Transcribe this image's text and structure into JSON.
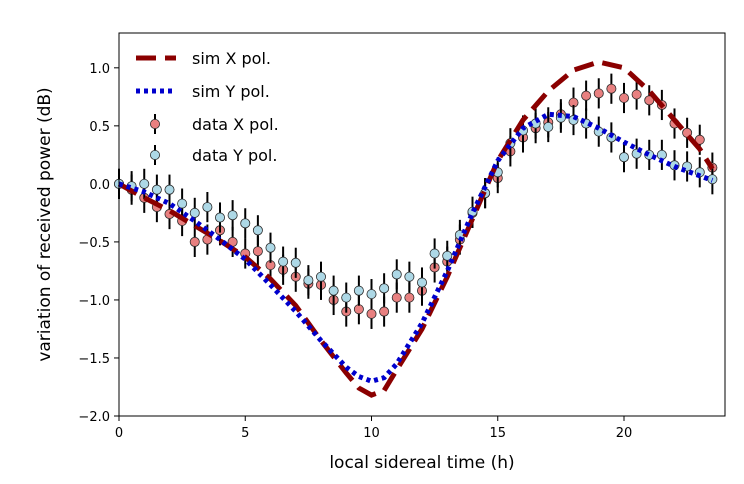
{
  "chart_data": {
    "type": "line",
    "xlabel": "local sidereal time (h)",
    "ylabel": "variation of received power (dB)",
    "xlim": [
      0,
      24
    ],
    "ylim": [
      -2.0,
      1.3
    ],
    "xticks": [
      0,
      5,
      10,
      15,
      20
    ],
    "xtick_labels": [
      "0",
      "5",
      "10",
      "15",
      "20"
    ],
    "yticks": [
      -2.0,
      -1.5,
      -1.0,
      -0.5,
      0.0,
      0.5,
      1.0
    ],
    "ytick_labels": [
      "−2.0",
      "−1.5",
      "−1.0",
      "−0.5",
      "0.0",
      "0.5",
      "1.0"
    ],
    "grid": false,
    "legend_position": "top-left",
    "series": [
      {
        "name": "sim X pol.",
        "kind": "line",
        "style": "dashed",
        "color": "#8b0000",
        "x": [
          0,
          1,
          2,
          3,
          4,
          5,
          6,
          7,
          8,
          9,
          9.5,
          10,
          10.5,
          11,
          12,
          13,
          14,
          15,
          16,
          17,
          18,
          19,
          20,
          21,
          22,
          23,
          23.5
        ],
        "y": [
          0.0,
          -0.12,
          -0.23,
          -0.36,
          -0.49,
          -0.63,
          -0.82,
          -1.05,
          -1.35,
          -1.63,
          -1.76,
          -1.82,
          -1.78,
          -1.6,
          -1.25,
          -0.8,
          -0.3,
          0.2,
          0.55,
          0.8,
          0.98,
          1.05,
          1.0,
          0.8,
          0.55,
          0.3,
          0.13
        ]
      },
      {
        "name": "sim Y pol.",
        "kind": "line",
        "style": "dotted",
        "color": "#0000cd",
        "x": [
          0,
          1,
          2,
          3,
          4,
          5,
          6,
          7,
          8,
          9,
          9.5,
          10,
          10.5,
          11,
          12,
          13,
          14,
          15,
          16,
          17,
          18,
          19,
          20,
          21,
          22,
          23,
          23.5
        ],
        "y": [
          0.0,
          -0.07,
          -0.17,
          -0.32,
          -0.48,
          -0.65,
          -0.87,
          -1.1,
          -1.35,
          -1.58,
          -1.66,
          -1.7,
          -1.67,
          -1.55,
          -1.2,
          -0.75,
          -0.25,
          0.2,
          0.48,
          0.6,
          0.58,
          0.48,
          0.36,
          0.25,
          0.15,
          0.07,
          0.03
        ]
      },
      {
        "name": "data X pol.",
        "kind": "errorbar",
        "color": "#e88080",
        "x": [
          0,
          0.5,
          1,
          1.5,
          2,
          2.5,
          3,
          3.5,
          4,
          4.5,
          5,
          5.5,
          6,
          6.5,
          7,
          7.5,
          8,
          8.5,
          9,
          9.5,
          10,
          10.5,
          11,
          11.5,
          12,
          12.5,
          13,
          13.5,
          14,
          14.5,
          15,
          15.5,
          16,
          16.5,
          17,
          17.5,
          18,
          18.5,
          19,
          19.5,
          20,
          20.5,
          21,
          21.5,
          22,
          22.5,
          23,
          23.5
        ],
        "y": [
          0.0,
          -0.05,
          -0.12,
          -0.2,
          -0.26,
          -0.32,
          -0.5,
          -0.48,
          -0.4,
          -0.5,
          -0.6,
          -0.58,
          -0.7,
          -0.74,
          -0.8,
          -0.86,
          -0.87,
          -1.0,
          -1.1,
          -1.08,
          -1.12,
          -1.1,
          -0.98,
          -0.98,
          -0.92,
          -0.72,
          -0.67,
          -0.48,
          -0.25,
          -0.08,
          0.05,
          0.28,
          0.4,
          0.48,
          0.53,
          0.6,
          0.7,
          0.76,
          0.78,
          0.82,
          0.74,
          0.77,
          0.72,
          0.68,
          0.52,
          0.44,
          0.38,
          0.14
        ],
        "yerr": 0.13
      },
      {
        "name": "data Y pol.",
        "kind": "errorbar",
        "color": "#add8e6",
        "x": [
          0,
          0.5,
          1,
          1.5,
          2,
          2.5,
          3,
          3.5,
          4,
          4.5,
          5,
          5.5,
          6,
          6.5,
          7,
          7.5,
          8,
          8.5,
          9,
          9.5,
          10,
          10.5,
          11,
          11.5,
          12,
          12.5,
          13,
          13.5,
          14,
          14.5,
          15,
          15.5,
          16,
          16.5,
          17,
          17.5,
          18,
          18.5,
          19,
          19.5,
          20,
          20.5,
          21,
          21.5,
          22,
          22.5,
          23,
          23.5
        ],
        "y": [
          0.0,
          -0.02,
          0.0,
          -0.05,
          -0.05,
          -0.17,
          -0.25,
          -0.2,
          -0.29,
          -0.27,
          -0.34,
          -0.4,
          -0.55,
          -0.67,
          -0.68,
          -0.83,
          -0.8,
          -0.92,
          -0.98,
          -0.92,
          -0.95,
          -0.9,
          -0.78,
          -0.8,
          -0.85,
          -0.6,
          -0.62,
          -0.44,
          -0.24,
          -0.08,
          0.1,
          0.35,
          0.46,
          0.52,
          0.49,
          0.57,
          0.55,
          0.52,
          0.45,
          0.4,
          0.23,
          0.26,
          0.25,
          0.25,
          0.16,
          0.15,
          0.1,
          0.04
        ],
        "yerr": 0.13
      }
    ]
  }
}
